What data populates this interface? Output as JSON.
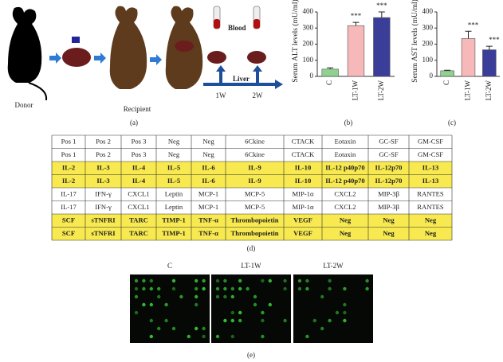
{
  "illustration": {
    "donor": "Donor",
    "recipient": "Recipient",
    "blood": "Blood",
    "liver": "Liver",
    "week1": "1W",
    "week2": "2W"
  },
  "chart_data": [
    {
      "type": "bar",
      "ylabel": "Serum ALT levels (mU/ml)",
      "categories": [
        "C",
        "LT-1W",
        "LT-2W"
      ],
      "values": [
        45,
        315,
        365
      ],
      "errors": [
        8,
        20,
        35
      ],
      "colors": [
        "#8fd18f",
        "#f6b8b8",
        "#3b3e98"
      ],
      "ylim": [
        0,
        400
      ],
      "yticks": [
        0,
        100,
        200,
        300,
        400
      ],
      "annotations": [
        {
          "category": "LT-1W",
          "text": "***"
        },
        {
          "category": "LT-2W",
          "text": "***"
        }
      ]
    },
    {
      "type": "bar",
      "ylabel": "Serum AST levels (mU/ml)",
      "categories": [
        "C",
        "LT-1W",
        "LT-2W"
      ],
      "values": [
        35,
        235,
        165
      ],
      "errors": [
        3,
        45,
        22
      ],
      "colors": [
        "#8fd18f",
        "#f6b8b8",
        "#3b3e98"
      ],
      "ylim": [
        0,
        400
      ],
      "yticks": [
        0,
        100,
        200,
        300,
        400
      ],
      "annotations": [
        {
          "category": "LT-1W",
          "text": "***"
        },
        {
          "category": "LT-2W",
          "text": "***"
        }
      ]
    }
  ],
  "table": {
    "highlighted_rows": [
      2,
      3,
      6,
      7
    ],
    "highlight_color": "#f7e94f",
    "rows": [
      [
        "Pos 1",
        "Pos 2",
        "Pos 3",
        "Neg",
        "Neg",
        "6Ckine",
        "CTACK",
        "Eotaxin",
        "GC-SF",
        "GM-CSF"
      ],
      [
        "Pos 1",
        "Pos 2",
        "Pos 3",
        "Neg",
        "Neg",
        "6Ckine",
        "CTACK",
        "Eotaxin",
        "GC-SF",
        "GM-CSF"
      ],
      [
        "IL-2",
        "IL-3",
        "IL-4",
        "IL-5",
        "IL-6",
        "IL-9",
        "IL-10",
        "IL-12 p40p70",
        "IL-12p70",
        "IL-13"
      ],
      [
        "IL-2",
        "IL-3",
        "IL-4",
        "IL-5",
        "IL-6",
        "IL-9",
        "IL-10",
        "IL-12 p40p70",
        "IL-12p70",
        "IL-13"
      ],
      [
        "IL-17",
        "IFN-γ",
        "CXCL1",
        "Leptin",
        "MCP-1",
        "MCP-5",
        "MIP-1α",
        "CXCL2",
        "MIP-3β",
        "RANTES"
      ],
      [
        "IL-17",
        "IFN-γ",
        "CXCL1",
        "Leptin",
        "MCP-1",
        "MCP-5",
        "MIP-1α",
        "CXCL2",
        "MIP-3β",
        "RANTES"
      ],
      [
        "SCF",
        "sTNFRI",
        "TARC",
        "TIMP-1",
        "TNF-α",
        "Thrombopoietin",
        "VEGF",
        "Neg",
        "Neg",
        "Neg"
      ],
      [
        "SCF",
        "sTNFRI",
        "TARC",
        "TIMP-1",
        "TNF-α",
        "Thrombopoietin",
        "VEGF",
        "Neg",
        "Neg",
        "Neg"
      ]
    ]
  },
  "arrays": {
    "labels": [
      "C",
      "LT-1W",
      "LT-2W"
    ]
  },
  "panel_labels": [
    "(a)",
    "(b)",
    "(c)",
    "(d)",
    "(e)"
  ]
}
